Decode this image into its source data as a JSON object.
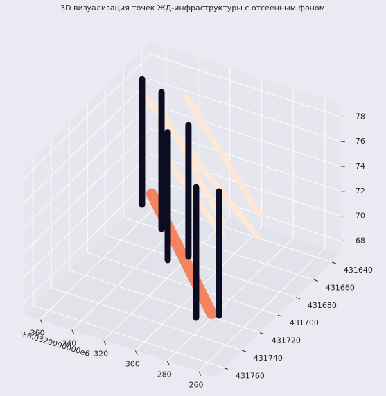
{
  "chart_data": {
    "type": "scatter3d",
    "title": "3D визуализация точек ЖД-инфраструктуры с отсеенным фоном",
    "x_offset_text": "+6.0320000000e6",
    "xlim": [
      250,
      370
    ],
    "ylim": [
      431630,
      431770
    ],
    "zlim": [
      67,
      79
    ],
    "xticks": [
      260,
      280,
      300,
      320,
      340,
      360
    ],
    "yticks": [
      431640,
      431660,
      431680,
      431700,
      431720,
      431740,
      431760
    ],
    "zticks": [
      68,
      70,
      72,
      74,
      76,
      78
    ],
    "grid": true,
    "series": [
      {
        "color": "#f4845f",
        "x": [
          273,
          359
        ],
        "y": [
          431733,
          431648
        ],
        "z": [
          68.5,
          68.5
        ]
      },
      {
        "color": "#fbe8d8",
        "x": [
          361,
          280
        ],
        "y": [
          431655,
          431670
        ],
        "z": [
          77,
          70
        ]
      },
      {
        "color": "#fbe8d8",
        "x": [
          338,
          283
        ],
        "y": [
          431646,
          431662
        ],
        "z": [
          77,
          71
        ]
      },
      {
        "color": "#fbe8d8",
        "x": [
          354,
          297
        ],
        "y": [
          431649,
          431679
        ],
        "z": [
          76,
          71
        ]
      },
      {
        "color": "#fbe8d8",
        "x": [
          322,
          285
        ],
        "y": [
          431695,
          431700
        ],
        "z": [
          76,
          72
        ]
      },
      {
        "color": "#0c0c22",
        "x": [
          361.4,
          361.4
        ],
        "y": [
          431654.5,
          431654.5
        ],
        "z": [
          68,
          78.1
        ]
      },
      {
        "color": "#0c0c22",
        "x": [
          340.5,
          340.5
        ],
        "y": [
          431669.7,
          431669.7
        ],
        "z": [
          68,
          79
        ]
      },
      {
        "color": "#0c0c22",
        "x": [
          322.5,
          322.5
        ],
        "y": [
          431694.5,
          431694.5
        ],
        "z": [
          68,
          78.3
        ]
      },
      {
        "color": "#0c0c22",
        "x": [
          314.4,
          314.4
        ],
        "y": [
          431685.8,
          431685.8
        ],
        "z": [
          68,
          78.6
        ]
      },
      {
        "color": "#0c0c22",
        "x": [
          281.3,
          281.3
        ],
        "y": [
          431735.6,
          431735.6
        ],
        "z": [
          68,
          78.5
        ]
      },
      {
        "color": "#0c0c22",
        "x": [
          271.5,
          271.5
        ],
        "y": [
          431727.4,
          431727.4
        ],
        "z": [
          68,
          78
        ]
      }
    ]
  }
}
